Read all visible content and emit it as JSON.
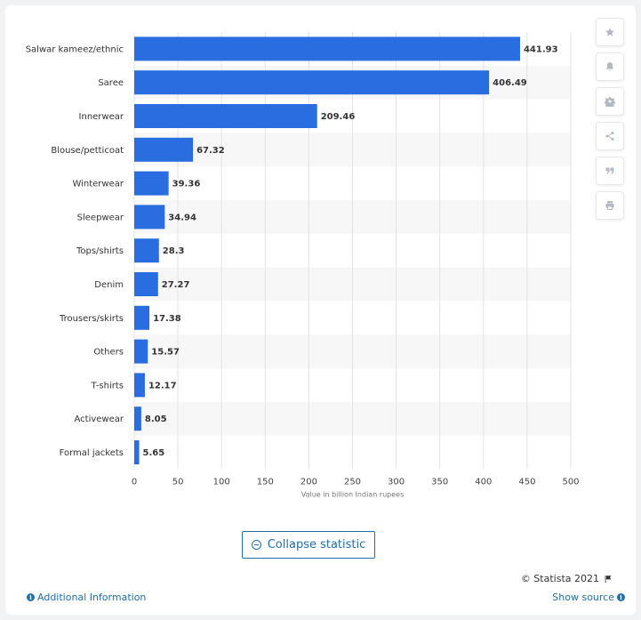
{
  "chart_data": {
    "type": "bar",
    "orientation": "horizontal",
    "categories": [
      "Salwar kameez/ethnic",
      "Saree",
      "Innerwear",
      "Blouse/petticoat",
      "Winterwear",
      "Sleepwear",
      "Tops/shirts",
      "Denim",
      "Trousers/skirts",
      "Others",
      "T-shirts",
      "Activewear",
      "Formal jackets"
    ],
    "values": [
      441.93,
      406.49,
      209.46,
      67.32,
      39.36,
      34.94,
      28.3,
      27.27,
      17.38,
      15.57,
      12.17,
      8.05,
      5.65
    ],
    "value_labels": [
      "441.93",
      "406.49",
      "209.46",
      "67.32",
      "39.36",
      "34.94",
      "28.3",
      "27.27",
      "17.38",
      "15.57",
      "12.17",
      "8.05",
      "5.65"
    ],
    "xlabel": "Value in billion Indian rupees",
    "xlim": [
      0,
      500
    ],
    "xticks": [
      0,
      50,
      100,
      150,
      200,
      250,
      300,
      350,
      400,
      450,
      500
    ],
    "xtick_labels": [
      "0",
      "50",
      "100",
      "150",
      "200",
      "250",
      "300",
      "350",
      "400",
      "450",
      "500"
    ],
    "grid": true,
    "bar_color": "#2a6de0",
    "alt_row_color": "#f7f7f7"
  },
  "sidebar": {
    "tools": [
      {
        "icon": "star-icon"
      },
      {
        "icon": "bell-icon"
      },
      {
        "icon": "gear-icon"
      },
      {
        "icon": "share-icon"
      },
      {
        "icon": "quote-icon"
      },
      {
        "icon": "print-icon"
      }
    ]
  },
  "actions": {
    "collapse_label": "Collapse statistic"
  },
  "footer": {
    "copyright": "© Statista 2021",
    "additional_info": "Additional Information",
    "show_source": "Show source"
  },
  "colors": {
    "accent": "#1f6fae"
  }
}
